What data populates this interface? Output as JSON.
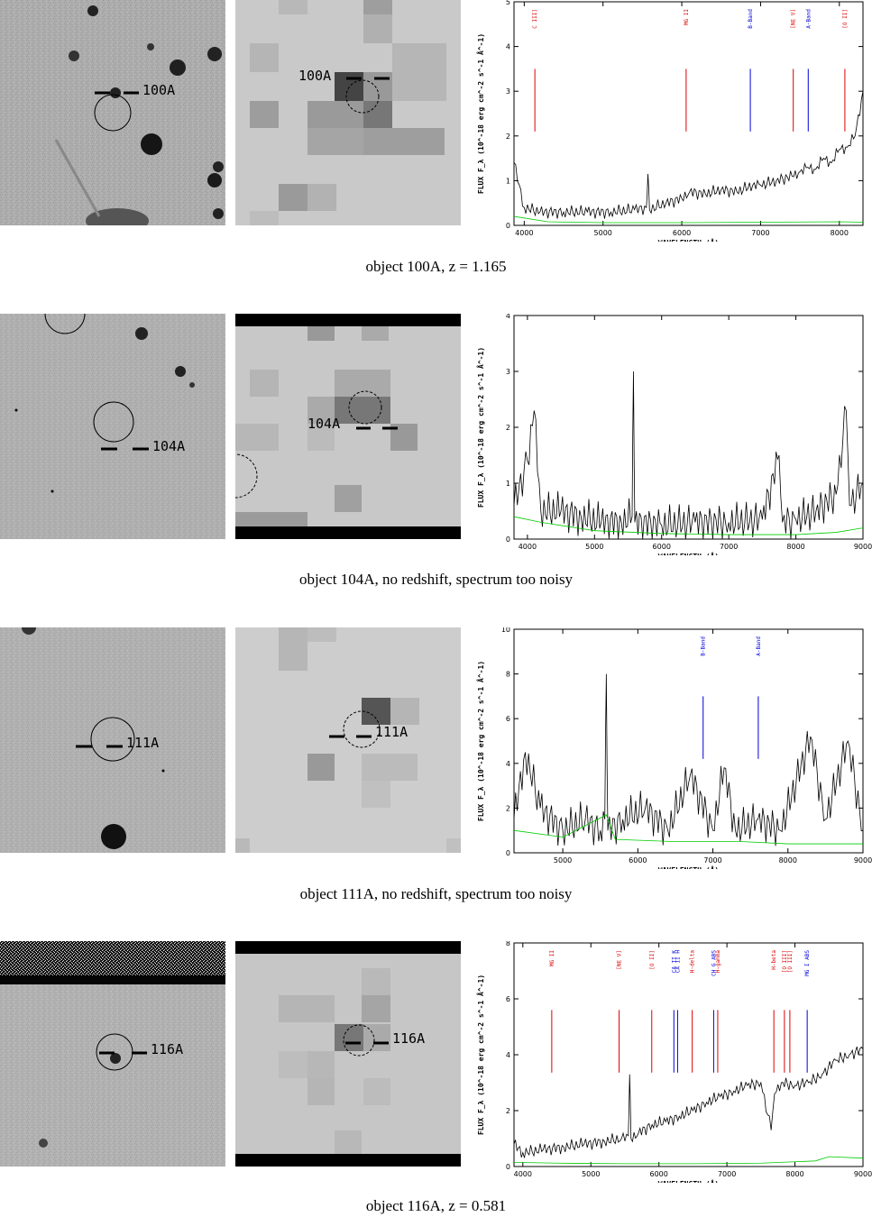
{
  "rows": [
    {
      "id": "100A",
      "label": "100A",
      "caption": "object 100A, z = 1.165",
      "chart_data": {
        "type": "line",
        "xlabel": "WAVELENGTH (Å)",
        "ylabel": "FLUX F_λ (10^-18 erg cm^-2 s^-1 Å^-1)",
        "xlim": [
          3870,
          8300
        ],
        "ylim": [
          0,
          5
        ],
        "xticks": [
          4000,
          5000,
          6000,
          7000,
          8000
        ],
        "yticks": [
          0,
          1,
          2,
          3,
          4,
          5
        ],
        "lines": [
          {
            "label": "C III]",
            "x": 4135,
            "kind": "emission"
          },
          {
            "label": "MG II",
            "x": 6055,
            "kind": "emission"
          },
          {
            "label": "B-Band",
            "x": 6870,
            "kind": "absorption"
          },
          {
            "label": "[NE V]",
            "x": 7415,
            "kind": "emission"
          },
          {
            "label": "A-Band",
            "x": 7605,
            "kind": "absorption"
          },
          {
            "label": "[O II]",
            "x": 8070,
            "kind": "emission"
          }
        ],
        "series": [
          {
            "name": "",
            "color": "#000000",
            "x": [
              3870,
              4000,
              4200,
              4500,
              4800,
              5100,
              5400,
              5550,
              5570,
              5590,
              5800,
              6000,
              6100,
              6300,
              6500,
              6700,
              6900,
              7000,
              7200,
              7400,
              7500,
              7600,
              7700,
              7800,
              7900,
              8000,
              8100,
              8200,
              8300
            ],
            "y": [
              1.4,
              0.4,
              0.3,
              0.3,
              0.3,
              0.3,
              0.35,
              0.4,
              1.15,
              0.35,
              0.5,
              0.6,
              0.75,
              0.7,
              0.8,
              0.75,
              0.9,
              0.9,
              1.0,
              1.1,
              1.2,
              1.3,
              1.25,
              1.5,
              1.4,
              1.7,
              1.75,
              2.0,
              3.0
            ]
          },
          {
            "name": "",
            "color": "#00cc00",
            "x": [
              3870,
              4300,
              5000,
              6000,
              7000,
              8000,
              8300
            ],
            "y": [
              0.2,
              0.08,
              0.06,
              0.06,
              0.07,
              0.08,
              0.07
            ]
          }
        ]
      }
    },
    {
      "id": "104A",
      "label": "104A",
      "caption": "object 104A, no redshift, spectrum too noisy",
      "chart_data": {
        "type": "line",
        "xlabel": "WAVELENGTH (Å)",
        "ylabel": "FLUX F_λ (10^-18 erg cm^-2 s^-1 Å^-1)",
        "xlim": [
          3800,
          9000
        ],
        "ylim": [
          0,
          4
        ],
        "xticks": [
          4000,
          5000,
          6000,
          7000,
          8000,
          9000
        ],
        "yticks": [
          0,
          1,
          2,
          3,
          4
        ],
        "lines": [],
        "series": [
          {
            "name": "",
            "color": "#000000",
            "x": [
              3800,
              4000,
              4100,
              4200,
              4500,
              4800,
              5100,
              5400,
              5560,
              5580,
              5600,
              6000,
              6500,
              7000,
              7500,
              7750,
              7800,
              8000,
              8300,
              8600,
              8750,
              8800,
              9000
            ],
            "y": [
              0.6,
              1.4,
              2.3,
              0.5,
              0.5,
              0.4,
              0.3,
              0.3,
              0.4,
              3.0,
              0.3,
              0.25,
              0.3,
              0.3,
              0.35,
              1.5,
              0.3,
              0.35,
              0.5,
              0.8,
              2.3,
              0.6,
              1.0
            ]
          },
          {
            "name": "",
            "color": "#00cc00",
            "x": [
              3800,
              4200,
              5000,
              6000,
              7000,
              8000,
              8600,
              9000
            ],
            "y": [
              0.4,
              0.3,
              0.15,
              0.1,
              0.08,
              0.08,
              0.12,
              0.2
            ]
          }
        ]
      }
    },
    {
      "id": "111A",
      "label": "111A",
      "caption": "object 111A, no redshift, spectrum too noisy",
      "chart_data": {
        "type": "line",
        "xlabel": "WAVELENGTH (Å)",
        "ylabel": "FLUX F_λ (10^-18 erg cm^-2 s^-1 Å^-1)",
        "xlim": [
          4350,
          9000
        ],
        "ylim": [
          0,
          10
        ],
        "xticks": [
          5000,
          6000,
          7000,
          8000,
          9000
        ],
        "yticks": [
          0,
          2,
          4,
          6,
          8,
          10
        ],
        "lines": [
          {
            "label": "B-Band",
            "x": 6870,
            "kind": "absorption"
          },
          {
            "label": "A-Band",
            "x": 7605,
            "kind": "absorption"
          }
        ],
        "series": [
          {
            "name": "",
            "color": "#000000",
            "x": [
              4350,
              4500,
              4700,
              5000,
              5300,
              5500,
              5560,
              5580,
              5600,
              5800,
              6100,
              6400,
              6700,
              7000,
              7150,
              7300,
              7600,
              7900,
              8300,
              8500,
              8800,
              9000
            ],
            "y": [
              1.5,
              4.5,
              2.0,
              1.0,
              1.5,
              1.0,
              1.5,
              8.0,
              1.0,
              1.5,
              2.0,
              1.0,
              3.5,
              1.0,
              3.8,
              1.0,
              1.5,
              1.0,
              5.2,
              1.5,
              5.0,
              1.0
            ]
          },
          {
            "name": "",
            "color": "#00cc00",
            "x": [
              4350,
              5000,
              5580,
              5700,
              6500,
              7400,
              8000,
              9000
            ],
            "y": [
              1.0,
              0.7,
              1.7,
              0.6,
              0.5,
              0.5,
              0.4,
              0.4
            ]
          }
        ]
      }
    },
    {
      "id": "116A",
      "label": "116A",
      "caption": "object 116A, z = 0.581",
      "chart_data": {
        "type": "line",
        "xlabel": "WAVELENGTH (Å)",
        "ylabel": "FLUX F_λ (10^-18 erg cm^-2 s^-1 Å^-1)",
        "xlim": [
          3870,
          9000
        ],
        "ylim": [
          0,
          8
        ],
        "xticks": [
          4000,
          5000,
          6000,
          7000,
          8000,
          9000
        ],
        "yticks": [
          0,
          2,
          4,
          6,
          8
        ],
        "lines": [
          {
            "label": "MG II",
            "x": 4425,
            "kind": "emission"
          },
          {
            "label": "[NE V]",
            "x": 5415,
            "kind": "emission"
          },
          {
            "label": "[O II]",
            "x": 5895,
            "kind": "emission"
          },
          {
            "label": "CA II K",
            "x": 6220,
            "kind": "absorption"
          },
          {
            "label": "CA II H",
            "x": 6275,
            "kind": "absorption"
          },
          {
            "label": "H-delta",
            "x": 6490,
            "kind": "emission"
          },
          {
            "label": "CH G ABS",
            "x": 6805,
            "kind": "absorption"
          },
          {
            "label": "H-gamma",
            "x": 6865,
            "kind": "emission"
          },
          {
            "label": "H-beta",
            "x": 7690,
            "kind": "emission"
          },
          {
            "label": "[O III]",
            "x": 7845,
            "kind": "emission"
          },
          {
            "label": "[O III]",
            "x": 7925,
            "kind": "emission"
          },
          {
            "label": "MG I ABS",
            "x": 8180,
            "kind": "absorption"
          }
        ],
        "series": [
          {
            "name": "",
            "color": "#000000",
            "x": [
              3870,
              4000,
              4300,
              4600,
              4900,
              5200,
              5450,
              5550,
              5570,
              5590,
              5700,
              5900,
              6100,
              6300,
              6500,
              6700,
              6900,
              7100,
              7300,
              7500,
              7650,
              7700,
              7800,
              8000,
              8200,
              8400,
              8600,
              8800,
              9000
            ],
            "y": [
              0.8,
              0.5,
              0.6,
              0.7,
              0.8,
              0.9,
              1.0,
              1.1,
              3.3,
              1.0,
              1.2,
              1.5,
              1.6,
              1.8,
              2.0,
              2.3,
              2.5,
              2.7,
              2.9,
              3.0,
              1.3,
              2.6,
              3.0,
              2.9,
              3.0,
              3.3,
              3.8,
              4.0,
              4.2
            ]
          },
          {
            "name": "",
            "color": "#00cc00",
            "x": [
              3870,
              4500,
              5500,
              6500,
              7500,
              8300,
              8500,
              9000
            ],
            "y": [
              0.15,
              0.12,
              0.1,
              0.1,
              0.12,
              0.2,
              0.35,
              0.3
            ]
          }
        ]
      }
    }
  ]
}
